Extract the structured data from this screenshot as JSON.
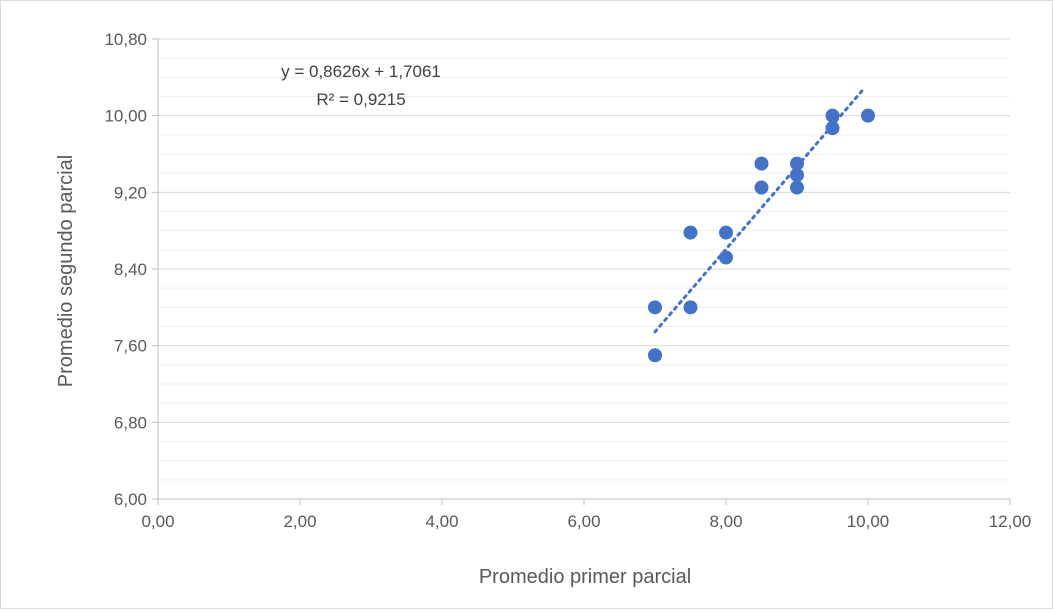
{
  "chart_data": {
    "type": "scatter",
    "title": "",
    "xlabel": "Promedio primer parcial",
    "ylabel": "Promedio segundo parcial",
    "xlim": [
      0,
      12
    ],
    "ylim": [
      6,
      10.8
    ],
    "x_ticks": [
      "0,00",
      "2,00",
      "4,00",
      "6,00",
      "8,00",
      "10,00",
      "12,00"
    ],
    "x_tick_values": [
      0,
      2,
      4,
      6,
      8,
      10,
      12
    ],
    "y_ticks": [
      "6,00",
      "6,80",
      "7,60",
      "8,40",
      "9,20",
      "10,00",
      "10,80"
    ],
    "y_tick_values": [
      6,
      6.8,
      7.6,
      8.4,
      9.2,
      10,
      10.8
    ],
    "y_minor_gridlines": [
      6.2,
      6.4,
      6.6,
      7.0,
      7.2,
      7.4,
      7.8,
      8.0,
      8.2,
      8.6,
      8.8,
      9.0,
      9.4,
      9.6,
      9.8,
      10.2,
      10.4,
      10.6
    ],
    "grid": true,
    "legend": "none",
    "series": [
      {
        "points": [
          {
            "x": 7.0,
            "y": 8.0
          },
          {
            "x": 7.0,
            "y": 7.5
          },
          {
            "x": 7.5,
            "y": 8.0
          },
          {
            "x": 7.5,
            "y": 8.78
          },
          {
            "x": 8.0,
            "y": 8.78
          },
          {
            "x": 8.0,
            "y": 8.52
          },
          {
            "x": 8.5,
            "y": 9.5
          },
          {
            "x": 8.5,
            "y": 9.25
          },
          {
            "x": 9.0,
            "y": 9.5
          },
          {
            "x": 9.0,
            "y": 9.38
          },
          {
            "x": 9.0,
            "y": 9.25
          },
          {
            "x": 9.5,
            "y": 10.0
          },
          {
            "x": 9.5,
            "y": 9.87
          },
          {
            "x": 10.0,
            "y": 10.0
          }
        ],
        "color": "#4472c4"
      }
    ],
    "trendline": {
      "type": "linear",
      "slope": 0.8626,
      "intercept": 1.7061,
      "x_range": [
        7.0,
        9.95
      ],
      "style": "dotted",
      "color": "#4472c4",
      "equation_label": "y = 0,8626x + 1,7061",
      "r2_label": "R² = 0,9215"
    }
  }
}
